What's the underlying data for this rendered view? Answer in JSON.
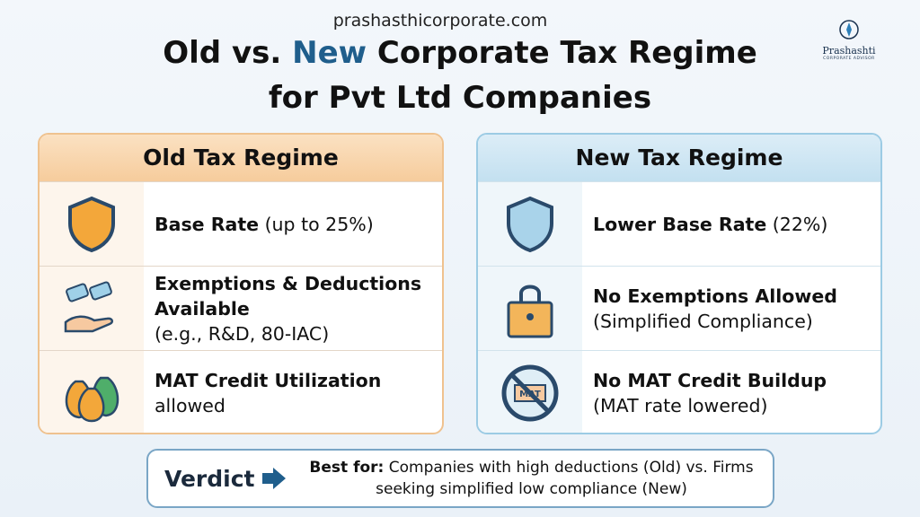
{
  "website": "prashasthicorporate.com",
  "title": {
    "part1": "Old vs.",
    "highlight": "New",
    "part2": "Corporate Tax Regime",
    "line2": "for Pvt Ltd Companies"
  },
  "logo": {
    "name": "Prashashti",
    "tagline": "CORPORATE ADVISOR"
  },
  "columns": [
    {
      "header": "Old Tax Regime",
      "rows": [
        {
          "bold": "Base Rate",
          "normal": "(up to 25%)"
        },
        {
          "bold": "Exemptions & Deductions Available",
          "normal": "(e.g., R&D, 80-IAC)"
        },
        {
          "bold": "MAT Credit Utilization",
          "normal": "allowed"
        }
      ]
    },
    {
      "header": "New Tax Regime",
      "rows": [
        {
          "bold": "Lower Base Rate",
          "normal": "(22%)"
        },
        {
          "bold": "No Exemptions Allowed",
          "normal": "(Simplified Compliance)"
        },
        {
          "bold": "No MAT Credit Buildup",
          "normal": "(MAT rate lowered)",
          "icon_text": "MAT"
        }
      ]
    }
  ],
  "verdict": {
    "label": "Verdict",
    "lead": "Best for:",
    "text": "Companies with high deductions (Old) vs. Firms seeking simplified low compliance (New)"
  }
}
